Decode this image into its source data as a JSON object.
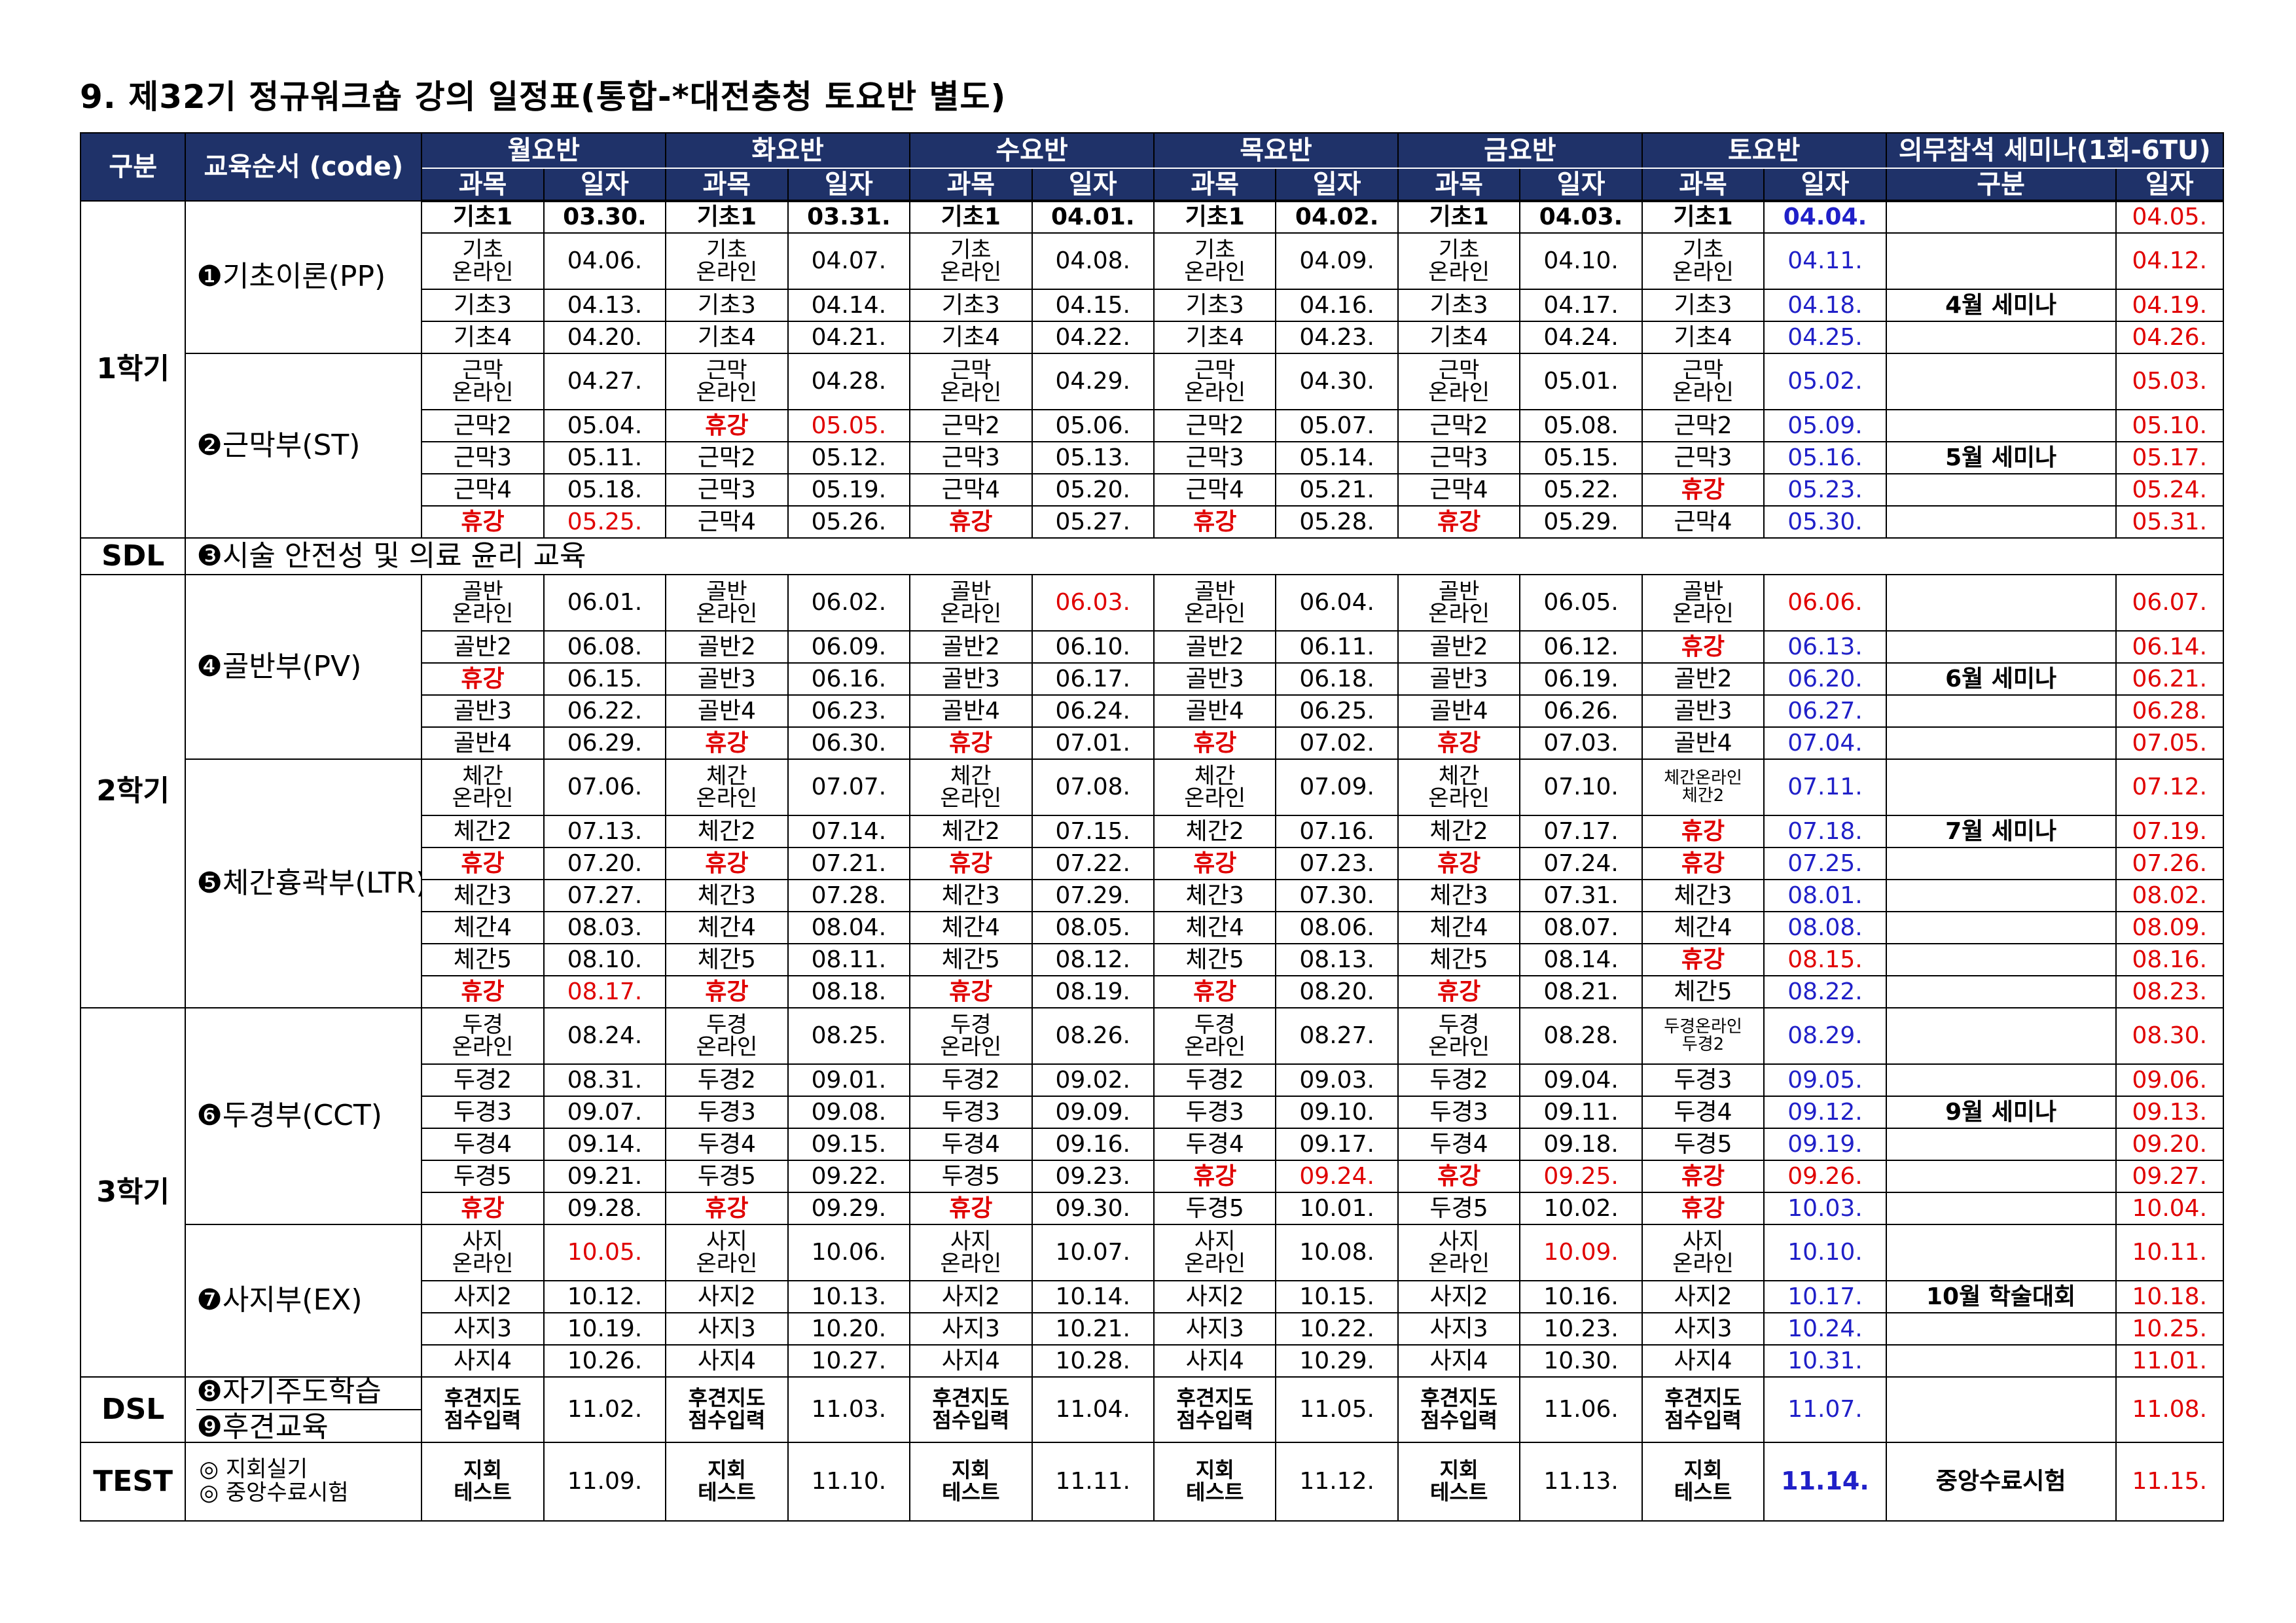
{
  "title": "9. 제32기 정규워크숍 강의 일정표(통합-*대전충청 토요반 별도)",
  "header": {
    "group": "구분",
    "order": "교육순서 (code)",
    "days": [
      "월요반",
      "화요반",
      "수요반",
      "목요반",
      "금요반",
      "토요반"
    ],
    "seminar": "의무참석 세미나(1회-6TU)",
    "subject": "과목",
    "date": "일자",
    "seminar_type": "구분",
    "seminar_date": "일자"
  },
  "terms": {
    "t1": "1학기",
    "sdl": "SDL",
    "t2": "2학기",
    "t3": "3학기",
    "dsl": "DSL",
    "test": "TEST"
  },
  "units": {
    "pp": "❶기초이론(PP)",
    "st": "❷근막부(ST)",
    "sdl": "❸시술 안전성 및 의료 윤리 교육",
    "pv": "❹골반부(PV)",
    "ltr": "❺체간흉곽부(LTR)",
    "cct": "❻두경부(CCT)",
    "ex": "❼사지부(EX)",
    "dsl1": "❽자기주도학습",
    "dsl2": "❾후견교육",
    "test1": "◎ 지회실기",
    "test2": "◎ 중앙수료시험"
  },
  "seminars": {
    "apr": "4월 세미나",
    "may": "5월 세미나",
    "jun": "6월 세미나",
    "jul": "7월 세미나",
    "sep": "9월 세미나",
    "oct": "10월 학술대회",
    "final": "중앙수료시험"
  },
  "rows": [
    {
      "cells": [
        [
          "기초1",
          "03.30."
        ],
        [
          "기초1",
          "03.31."
        ],
        [
          "기초1",
          "04.01."
        ],
        [
          "기초1",
          "04.02."
        ],
        [
          "기초1",
          "04.03."
        ],
        [
          "기초1",
          "04.04."
        ]
      ],
      "sem_date": "04.05."
    },
    {
      "cells": [
        [
          "기초\n온라인",
          "04.06."
        ],
        [
          "기초\n온라인",
          "04.07."
        ],
        [
          "기초\n온라인",
          "04.08."
        ],
        [
          "기초\n온라인",
          "04.09."
        ],
        [
          "기초\n온라인",
          "04.10."
        ],
        [
          "기초\n온라인",
          "04.11."
        ]
      ],
      "sem_date": "04.12."
    },
    {
      "cells": [
        [
          "기초3",
          "04.13."
        ],
        [
          "기초3",
          "04.14."
        ],
        [
          "기초3",
          "04.15."
        ],
        [
          "기초3",
          "04.16."
        ],
        [
          "기초3",
          "04.17."
        ],
        [
          "기초3",
          "04.18."
        ]
      ],
      "sem_date": "04.19."
    },
    {
      "cells": [
        [
          "기초4",
          "04.20."
        ],
        [
          "기초4",
          "04.21."
        ],
        [
          "기초4",
          "04.22."
        ],
        [
          "기초4",
          "04.23."
        ],
        [
          "기초4",
          "04.24."
        ],
        [
          "기초4",
          "04.25."
        ]
      ],
      "sem_date": "04.26."
    },
    {
      "cells": [
        [
          "근막\n온라인",
          "04.27."
        ],
        [
          "근막\n온라인",
          "04.28."
        ],
        [
          "근막\n온라인",
          "04.29."
        ],
        [
          "근막\n온라인",
          "04.30."
        ],
        [
          "근막\n온라인",
          "05.01."
        ],
        [
          "근막\n온라인",
          "05.02."
        ]
      ],
      "sem_date": "05.03."
    },
    {
      "cells": [
        [
          "근막2",
          "05.04."
        ],
        [
          "휴강",
          "05.05."
        ],
        [
          "근막2",
          "05.06."
        ],
        [
          "근막2",
          "05.07."
        ],
        [
          "근막2",
          "05.08."
        ],
        [
          "근막2",
          "05.09."
        ]
      ],
      "sem_date": "05.10."
    },
    {
      "cells": [
        [
          "근막3",
          "05.11."
        ],
        [
          "근막2",
          "05.12."
        ],
        [
          "근막3",
          "05.13."
        ],
        [
          "근막3",
          "05.14."
        ],
        [
          "근막3",
          "05.15."
        ],
        [
          "근막3",
          "05.16."
        ]
      ],
      "sem_date": "05.17."
    },
    {
      "cells": [
        [
          "근막4",
          "05.18."
        ],
        [
          "근막3",
          "05.19."
        ],
        [
          "근막4",
          "05.20."
        ],
        [
          "근막4",
          "05.21."
        ],
        [
          "근막4",
          "05.22."
        ],
        [
          "휴강",
          "05.23."
        ]
      ],
      "sem_date": "05.24."
    },
    {
      "cells": [
        [
          "휴강",
          "05.25."
        ],
        [
          "근막4",
          "05.26."
        ],
        [
          "휴강",
          "05.27."
        ],
        [
          "휴강",
          "05.28."
        ],
        [
          "휴강",
          "05.29."
        ],
        [
          "근막4",
          "05.30."
        ]
      ],
      "sem_date": "05.31."
    },
    {
      "cells": [
        [
          "골반\n온라인",
          "06.01."
        ],
        [
          "골반\n온라인",
          "06.02."
        ],
        [
          "골반\n온라인",
          "06.03."
        ],
        [
          "골반\n온라인",
          "06.04."
        ],
        [
          "골반\n온라인",
          "06.05."
        ],
        [
          "골반\n온라인",
          "06.06."
        ]
      ],
      "sem_date": "06.07."
    },
    {
      "cells": [
        [
          "골반2",
          "06.08."
        ],
        [
          "골반2",
          "06.09."
        ],
        [
          "골반2",
          "06.10."
        ],
        [
          "골반2",
          "06.11."
        ],
        [
          "골반2",
          "06.12."
        ],
        [
          "휴강",
          "06.13."
        ]
      ],
      "sem_date": "06.14."
    },
    {
      "cells": [
        [
          "휴강",
          "06.15."
        ],
        [
          "골반3",
          "06.16."
        ],
        [
          "골반3",
          "06.17."
        ],
        [
          "골반3",
          "06.18."
        ],
        [
          "골반3",
          "06.19."
        ],
        [
          "골반2",
          "06.20."
        ]
      ],
      "sem_date": "06.21."
    },
    {
      "cells": [
        [
          "골반3",
          "06.22."
        ],
        [
          "골반4",
          "06.23."
        ],
        [
          "골반4",
          "06.24."
        ],
        [
          "골반4",
          "06.25."
        ],
        [
          "골반4",
          "06.26."
        ],
        [
          "골반3",
          "06.27."
        ]
      ],
      "sem_date": "06.28."
    },
    {
      "cells": [
        [
          "골반4",
          "06.29."
        ],
        [
          "휴강",
          "06.30."
        ],
        [
          "휴강",
          "07.01."
        ],
        [
          "휴강",
          "07.02."
        ],
        [
          "휴강",
          "07.03."
        ],
        [
          "골반4",
          "07.04."
        ]
      ],
      "sem_date": "07.05."
    },
    {
      "cells": [
        [
          "체간\n온라인",
          "07.06."
        ],
        [
          "체간\n온라인",
          "07.07."
        ],
        [
          "체간\n온라인",
          "07.08."
        ],
        [
          "체간\n온라인",
          "07.09."
        ],
        [
          "체간\n온라인",
          "07.10."
        ],
        [
          "체간온라인\n체간2",
          "07.11."
        ]
      ],
      "sem_date": "07.12."
    },
    {
      "cells": [
        [
          "체간2",
          "07.13."
        ],
        [
          "체간2",
          "07.14."
        ],
        [
          "체간2",
          "07.15."
        ],
        [
          "체간2",
          "07.16."
        ],
        [
          "체간2",
          "07.17."
        ],
        [
          "휴강",
          "07.18."
        ]
      ],
      "sem_date": "07.19."
    },
    {
      "cells": [
        [
          "휴강",
          "07.20."
        ],
        [
          "휴강",
          "07.21."
        ],
        [
          "휴강",
          "07.22."
        ],
        [
          "휴강",
          "07.23."
        ],
        [
          "휴강",
          "07.24."
        ],
        [
          "휴강",
          "07.25."
        ]
      ],
      "sem_date": "07.26."
    },
    {
      "cells": [
        [
          "체간3",
          "07.27."
        ],
        [
          "체간3",
          "07.28."
        ],
        [
          "체간3",
          "07.29."
        ],
        [
          "체간3",
          "07.30."
        ],
        [
          "체간3",
          "07.31."
        ],
        [
          "체간3",
          "08.01."
        ]
      ],
      "sem_date": "08.02."
    },
    {
      "cells": [
        [
          "체간4",
          "08.03."
        ],
        [
          "체간4",
          "08.04."
        ],
        [
          "체간4",
          "08.05."
        ],
        [
          "체간4",
          "08.06."
        ],
        [
          "체간4",
          "08.07."
        ],
        [
          "체간4",
          "08.08."
        ]
      ],
      "sem_date": "08.09."
    },
    {
      "cells": [
        [
          "체간5",
          "08.10."
        ],
        [
          "체간5",
          "08.11."
        ],
        [
          "체간5",
          "08.12."
        ],
        [
          "체간5",
          "08.13."
        ],
        [
          "체간5",
          "08.14."
        ],
        [
          "휴강",
          "08.15."
        ]
      ],
      "sem_date": "08.16."
    },
    {
      "cells": [
        [
          "휴강",
          "08.17."
        ],
        [
          "휴강",
          "08.18."
        ],
        [
          "휴강",
          "08.19."
        ],
        [
          "휴강",
          "08.20."
        ],
        [
          "휴강",
          "08.21."
        ],
        [
          "체간5",
          "08.22."
        ]
      ],
      "sem_date": "08.23."
    },
    {
      "cells": [
        [
          "두경\n온라인",
          "08.24."
        ],
        [
          "두경\n온라인",
          "08.25."
        ],
        [
          "두경\n온라인",
          "08.26."
        ],
        [
          "두경\n온라인",
          "08.27."
        ],
        [
          "두경\n온라인",
          "08.28."
        ],
        [
          "두경온라인\n두경2",
          "08.29."
        ]
      ],
      "sem_date": "08.30."
    },
    {
      "cells": [
        [
          "두경2",
          "08.31."
        ],
        [
          "두경2",
          "09.01."
        ],
        [
          "두경2",
          "09.02."
        ],
        [
          "두경2",
          "09.03."
        ],
        [
          "두경2",
          "09.04."
        ],
        [
          "두경3",
          "09.05."
        ]
      ],
      "sem_date": "09.06."
    },
    {
      "cells": [
        [
          "두경3",
          "09.07."
        ],
        [
          "두경3",
          "09.08."
        ],
        [
          "두경3",
          "09.09."
        ],
        [
          "두경3",
          "09.10."
        ],
        [
          "두경3",
          "09.11."
        ],
        [
          "두경4",
          "09.12."
        ]
      ],
      "sem_date": "09.13."
    },
    {
      "cells": [
        [
          "두경4",
          "09.14."
        ],
        [
          "두경4",
          "09.15."
        ],
        [
          "두경4",
          "09.16."
        ],
        [
          "두경4",
          "09.17."
        ],
        [
          "두경4",
          "09.18."
        ],
        [
          "두경5",
          "09.19."
        ]
      ],
      "sem_date": "09.20."
    },
    {
      "cells": [
        [
          "두경5",
          "09.21."
        ],
        [
          "두경5",
          "09.22."
        ],
        [
          "두경5",
          "09.23."
        ],
        [
          "휴강",
          "09.24."
        ],
        [
          "휴강",
          "09.25."
        ],
        [
          "휴강",
          "09.26."
        ]
      ],
      "sem_date": "09.27."
    },
    {
      "cells": [
        [
          "휴강",
          "09.28."
        ],
        [
          "휴강",
          "09.29."
        ],
        [
          "휴강",
          "09.30."
        ],
        [
          "두경5",
          "10.01."
        ],
        [
          "두경5",
          "10.02."
        ],
        [
          "휴강",
          "10.03."
        ]
      ],
      "sem_date": "10.04."
    },
    {
      "cells": [
        [
          "사지\n온라인",
          "10.05."
        ],
        [
          "사지\n온라인",
          "10.06."
        ],
        [
          "사지\n온라인",
          "10.07."
        ],
        [
          "사지\n온라인",
          "10.08."
        ],
        [
          "사지\n온라인",
          "10.09."
        ],
        [
          "사지\n온라인",
          "10.10."
        ]
      ],
      "sem_date": "10.11."
    },
    {
      "cells": [
        [
          "사지2",
          "10.12."
        ],
        [
          "사지2",
          "10.13."
        ],
        [
          "사지2",
          "10.14."
        ],
        [
          "사지2",
          "10.15."
        ],
        [
          "사지2",
          "10.16."
        ],
        [
          "사지2",
          "10.17."
        ]
      ],
      "sem_date": "10.18."
    },
    {
      "cells": [
        [
          "사지3",
          "10.19."
        ],
        [
          "사지3",
          "10.20."
        ],
        [
          "사지3",
          "10.21."
        ],
        [
          "사지3",
          "10.22."
        ],
        [
          "사지3",
          "10.23."
        ],
        [
          "사지3",
          "10.24."
        ]
      ],
      "sem_date": "10.25."
    },
    {
      "cells": [
        [
          "사지4",
          "10.26."
        ],
        [
          "사지4",
          "10.27."
        ],
        [
          "사지4",
          "10.28."
        ],
        [
          "사지4",
          "10.29."
        ],
        [
          "사지4",
          "10.30."
        ],
        [
          "사지4",
          "10.31."
        ]
      ],
      "sem_date": "11.01."
    },
    {
      "cells": [
        [
          "후견지도\n점수입력",
          "11.02."
        ],
        [
          "후견지도\n점수입력",
          "11.03."
        ],
        [
          "후견지도\n점수입력",
          "11.04."
        ],
        [
          "후견지도\n점수입력",
          "11.05."
        ],
        [
          "후견지도\n점수입력",
          "11.06."
        ],
        [
          "후견지도\n점수입력",
          "11.07."
        ]
      ],
      "sem_date": "11.08."
    },
    {
      "cells": [
        [
          "지회\n테스트",
          "11.09."
        ],
        [
          "지회\n테스트",
          "11.10."
        ],
        [
          "지회\n테스트",
          "11.11."
        ],
        [
          "지회\n테스트",
          "11.12."
        ],
        [
          "지회\n테스트",
          "11.13."
        ],
        [
          "지회\n테스트",
          "11.14."
        ]
      ],
      "sem_date": "11.15."
    }
  ],
  "red_dates": [
    "05.05.",
    "06.03.",
    "05.25.",
    "08.17.",
    "08.15.",
    "10.05.",
    "10.09.",
    "09.24.",
    "09.25.",
    "09.26."
  ],
  "colors": {
    "header_bg": "#1f3269",
    "red": "#e00000",
    "blue": "#2020c8"
  }
}
